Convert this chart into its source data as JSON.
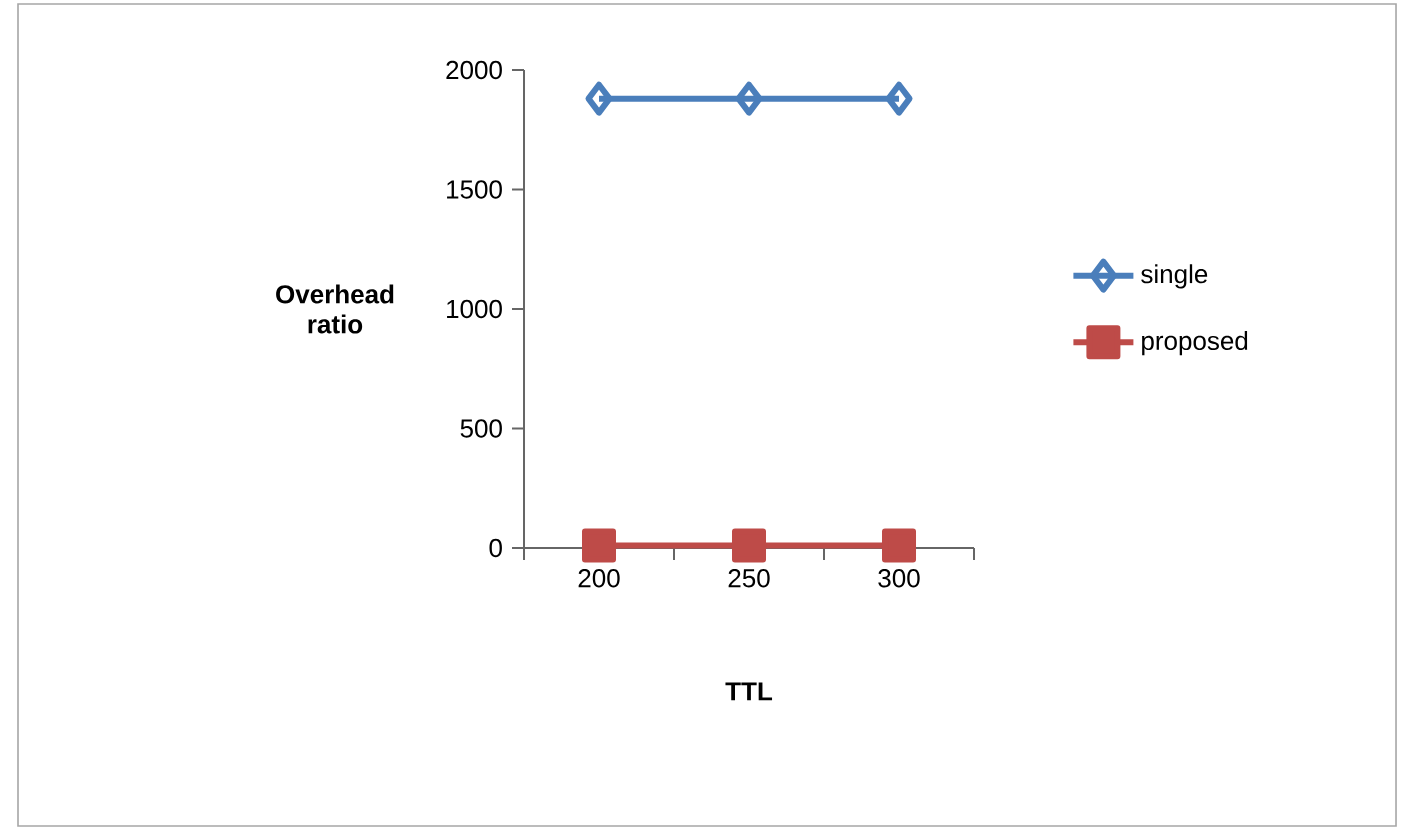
{
  "chart_data": {
    "type": "line",
    "xlabel": "TTL",
    "ylabel": "Overhead ratio",
    "categories": [
      "200",
      "250",
      "300"
    ],
    "series": [
      {
        "name": "single",
        "color": "#4a7ebb",
        "marker": "diamond",
        "values": [
          1880,
          1880,
          1880
        ]
      },
      {
        "name": "proposed",
        "color": "#be4b48",
        "marker": "square",
        "values": [
          10,
          10,
          10
        ]
      }
    ],
    "ylim": [
      0,
      2000
    ],
    "yticks": [
      0,
      500,
      1000,
      1500,
      2000
    ],
    "grid": false,
    "legend": "right"
  }
}
